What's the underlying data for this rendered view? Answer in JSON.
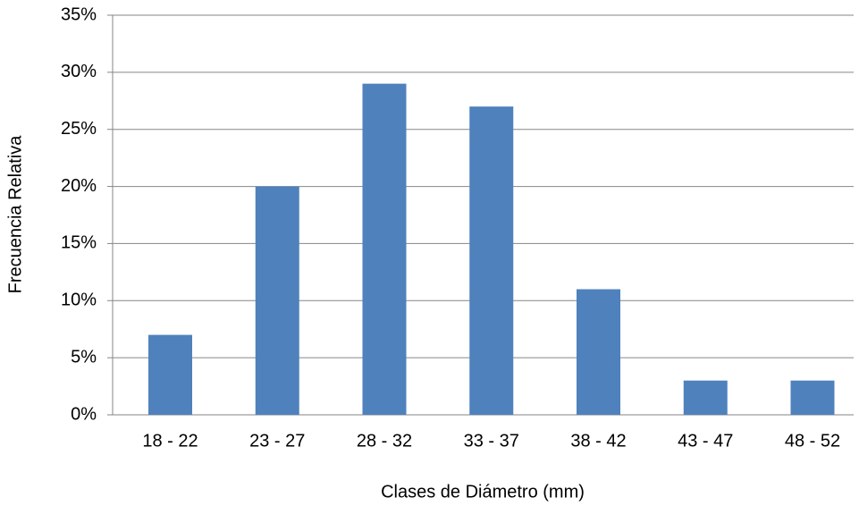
{
  "chart_data": {
    "type": "bar",
    "x_label": "Clases de Diámetro (mm)",
    "y_label": "Frecuencia Relativa",
    "categories": [
      "18 - 22",
      "23 - 27",
      "28 - 32",
      "33 - 37",
      "38 - 42",
      "43 - 47",
      "48 - 52"
    ],
    "values": [
      7,
      20,
      29,
      27,
      11,
      3,
      3
    ],
    "color": "#4f81bd",
    "ylim": [
      0,
      35
    ],
    "yticks": [
      {
        "value": 0,
        "label": "0%"
      },
      {
        "value": 5,
        "label": "5%"
      },
      {
        "value": 10,
        "label": "10%"
      },
      {
        "value": 15,
        "label": "15%"
      },
      {
        "value": 20,
        "label": "20%"
      },
      {
        "value": 25,
        "label": "25%"
      },
      {
        "value": 30,
        "label": "30%"
      },
      {
        "value": 35,
        "label": "35%"
      }
    ],
    "grid": true
  }
}
